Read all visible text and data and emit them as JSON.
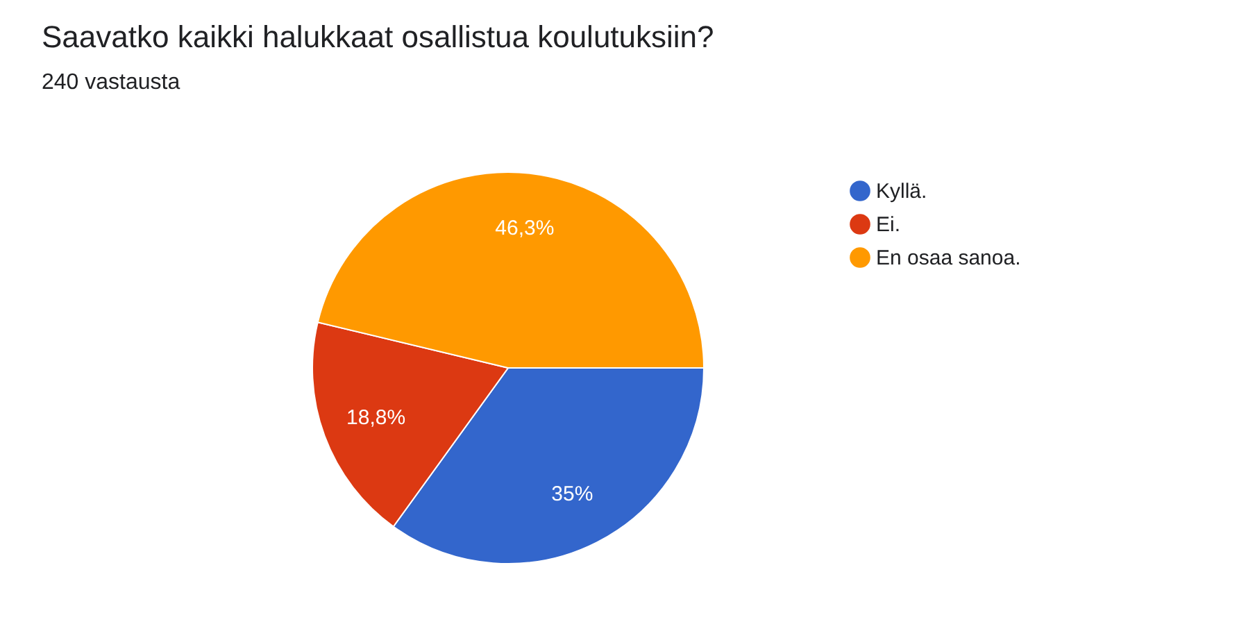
{
  "chart_data": {
    "type": "pie",
    "title": "Saavatko kaikki halukkaat osallistua koulutuksiin?",
    "subtitle": "240 vastausta",
    "categories": [
      "Kyllä.",
      "Ei.",
      "En osaa sanoa."
    ],
    "values": [
      35,
      18.8,
      46.3
    ],
    "colors": [
      "#3366cc",
      "#dc3912",
      "#ff9900"
    ],
    "value_labels": [
      "35%",
      "18,8%",
      "46,3%"
    ],
    "legend": "right"
  }
}
